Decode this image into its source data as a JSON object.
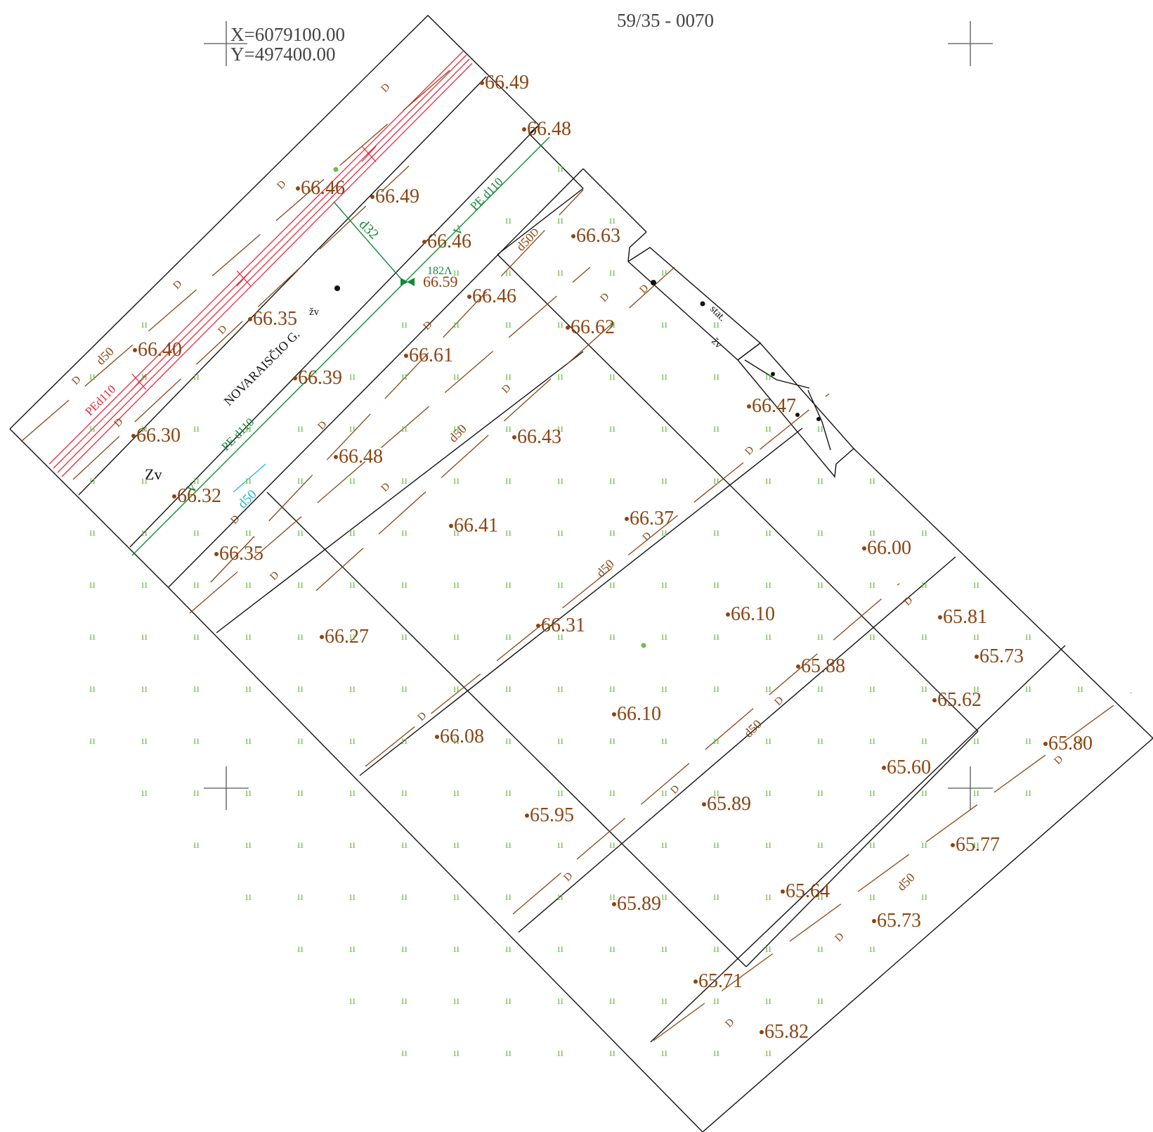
{
  "sheet": {
    "title": "59/35 - 0070"
  },
  "coordinates": {
    "x": "X=6079100.00",
    "y": "Y=497400.00"
  },
  "colors": {
    "parcel": "#111111",
    "sewer": "#8B4513",
    "water": "#138a36",
    "gas": "#e8283c",
    "cyan": "#1fb6c9",
    "grass": "#6abf4b",
    "elevation": "#8B4513"
  },
  "street": {
    "name": "NOVARAISČIO G."
  },
  "labels": {
    "zv": "Zv",
    "zv_small1": "žv",
    "zv_small2": "žv",
    "stat": "stat.",
    "d32": "d32",
    "hydrant_id": "182Λ",
    "hydrant_elev": "66.59",
    "pe_d110_red": "PEd110",
    "pe_d110_green_1": "PE d110",
    "pe_d110_green_2": "PE d110",
    "d50_cyan": "d50",
    "d50_brown": [
      "d50",
      "d50",
      "d50",
      "d50",
      "d50",
      "d50",
      "d50"
    ],
    "d_marker": "D",
    "v_marker": "V",
    "grass_symbol": "ıı"
  },
  "elevations": [
    "66.49",
    "66.48",
    "66.46",
    "66.49",
    "66.46",
    "66.63",
    "66.46",
    "66.35",
    "66.62",
    "66.40",
    "66.61",
    "66.39",
    "66.30",
    "66.48",
    "66.43",
    "66.47",
    "66.32",
    "66.41",
    "66.37",
    "66.35",
    "66.00",
    "66.27",
    "66.31",
    "66.10",
    "65.81",
    "65.88",
    "65.73",
    "66.10",
    "65.62",
    "66.08",
    "65.80",
    "65.60",
    "65.89",
    "65.95",
    "65.77",
    "65.64",
    "65.89",
    "65.73",
    "65.71",
    "65.82"
  ]
}
